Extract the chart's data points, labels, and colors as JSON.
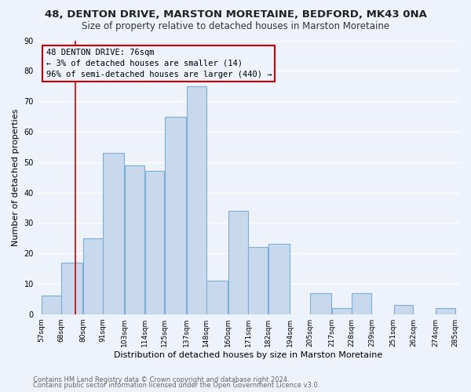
{
  "title": "48, DENTON DRIVE, MARSTON MORETAINE, BEDFORD, MK43 0NA",
  "subtitle": "Size of property relative to detached houses in Marston Moretaine",
  "xlabel": "Distribution of detached houses by size in Marston Moretaine",
  "ylabel": "Number of detached properties",
  "footer_line1": "Contains HM Land Registry data © Crown copyright and database right 2024.",
  "footer_line2": "Contains public sector information licensed under the Open Government Licence v3.0.",
  "bar_edges": [
    57,
    68,
    80,
    91,
    103,
    114,
    125,
    137,
    148,
    160,
    171,
    182,
    194,
    205,
    217,
    228,
    239,
    251,
    262,
    274,
    285
  ],
  "bar_heights": [
    6,
    17,
    25,
    53,
    49,
    47,
    65,
    75,
    11,
    34,
    22,
    23,
    0,
    7,
    2,
    7,
    0,
    3,
    0,
    2
  ],
  "tick_labels": [
    "57sqm",
    "68sqm",
    "80sqm",
    "91sqm",
    "103sqm",
    "114sqm",
    "125sqm",
    "137sqm",
    "148sqm",
    "160sqm",
    "171sqm",
    "182sqm",
    "194sqm",
    "205sqm",
    "217sqm",
    "228sqm",
    "239sqm",
    "251sqm",
    "262sqm",
    "274sqm",
    "285sqm"
  ],
  "bar_color": "#c8d8ed",
  "bar_edge_color": "#7bafd4",
  "vline_x": 76,
  "vline_color": "#cc0000",
  "annotation_text_line1": "48 DENTON DRIVE: 76sqm",
  "annotation_text_line2": "← 3% of detached houses are smaller (14)",
  "annotation_text_line3": "96% of semi-detached houses are larger (440) →",
  "ylim": [
    0,
    90
  ],
  "yticks": [
    0,
    10,
    20,
    30,
    40,
    50,
    60,
    70,
    80,
    90
  ],
  "bg_color": "#eef2fb",
  "plot_bg_color": "#eef2fb",
  "grid_color": "#ffffff",
  "title_fontsize": 9.5,
  "subtitle_fontsize": 8.5,
  "xlabel_fontsize": 8.0,
  "ylabel_fontsize": 8.0,
  "tick_fontsize": 6.5,
  "footer_fontsize": 6.0,
  "annot_fontsize": 7.5
}
